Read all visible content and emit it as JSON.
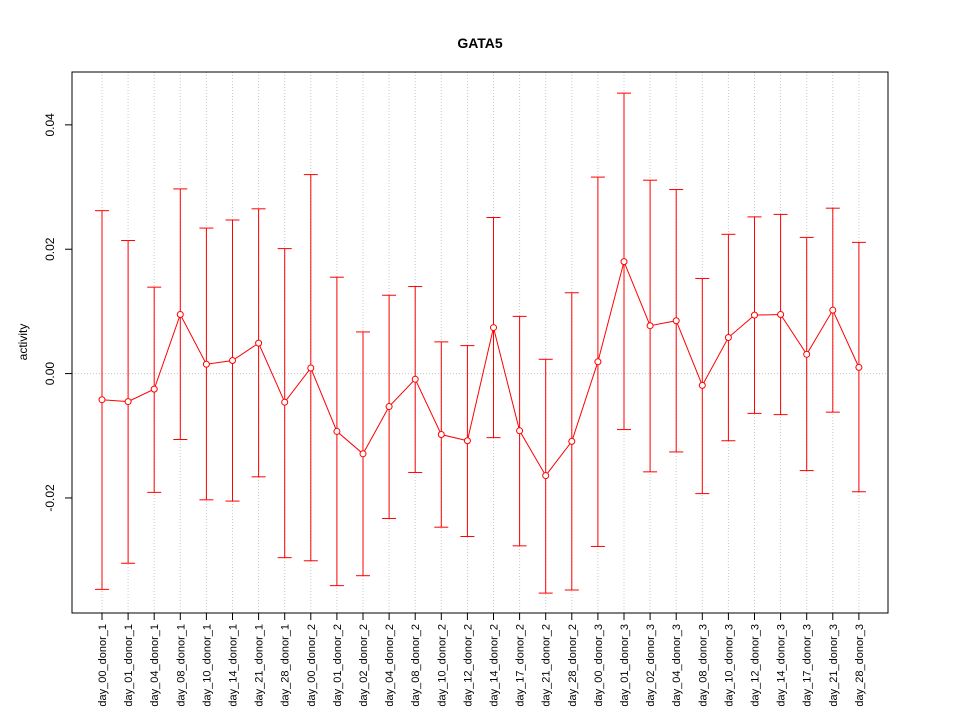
{
  "chart_data": {
    "type": "line",
    "title": "GATA5",
    "xlabel": "",
    "ylabel": "activity",
    "ylim": [
      -0.0385,
      0.0485
    ],
    "yticks": [
      -0.02,
      0.0,
      0.02,
      0.04
    ],
    "ytick_labels": [
      "-0.02",
      "0.00",
      "0.02",
      "0.04"
    ],
    "grid": "dotted vertical at each category, dotted horizontal at 0",
    "color": "#ff0000",
    "categories": [
      "day_00_donor_1",
      "day_01_donor_1",
      "day_04_donor_1",
      "day_08_donor_1",
      "day_10_donor_1",
      "day_14_donor_1",
      "day_21_donor_1",
      "day_28_donor_1",
      "day_00_donor_2",
      "day_01_donor_2",
      "day_02_donor_2",
      "day_04_donor_2",
      "day_08_donor_2",
      "day_10_donor_2",
      "day_12_donor_2",
      "day_14_donor_2",
      "day_17_donor_2",
      "day_21_donor_2",
      "day_28_donor_2",
      "day_00_donor_3",
      "day_01_donor_3",
      "day_02_donor_3",
      "day_04_donor_3",
      "day_08_donor_3",
      "day_10_donor_3",
      "day_12_donor_3",
      "day_14_donor_3",
      "day_17_donor_3",
      "day_21_donor_3",
      "day_28_donor_3"
    ],
    "values": [
      -0.0042,
      -0.0045,
      -0.0025,
      0.0095,
      0.0015,
      0.0021,
      0.0049,
      -0.0046,
      0.0009,
      -0.0093,
      -0.0129,
      -0.0053,
      -0.0009,
      -0.0098,
      -0.0108,
      0.0074,
      -0.0092,
      -0.0164,
      -0.0109,
      0.0019,
      0.018,
      0.0077,
      0.0085,
      -0.0019,
      0.0058,
      0.0094,
      0.0095,
      0.0031,
      0.0102,
      0.001
    ],
    "upper": [
      0.0262,
      0.0214,
      0.0139,
      0.0297,
      0.0234,
      0.0247,
      0.0265,
      0.0201,
      0.032,
      0.0155,
      0.0067,
      0.0126,
      0.014,
      0.0051,
      0.0045,
      0.0251,
      0.0092,
      0.0023,
      0.013,
      0.0316,
      0.0451,
      0.0311,
      0.0296,
      0.0153,
      0.0224,
      0.0252,
      0.0256,
      0.0219,
      0.0266,
      0.0211
    ],
    "lower": [
      -0.0347,
      -0.0305,
      -0.0191,
      -0.0106,
      -0.0203,
      -0.0205,
      -0.0166,
      -0.0296,
      -0.0301,
      -0.0341,
      -0.0325,
      -0.0233,
      -0.0159,
      -0.0247,
      -0.0262,
      -0.0103,
      -0.0277,
      -0.0353,
      -0.0348,
      -0.0278,
      -0.009,
      -0.0158,
      -0.0126,
      -0.0193,
      -0.0108,
      -0.0064,
      -0.0066,
      -0.0156,
      -0.0062,
      -0.019
    ]
  }
}
